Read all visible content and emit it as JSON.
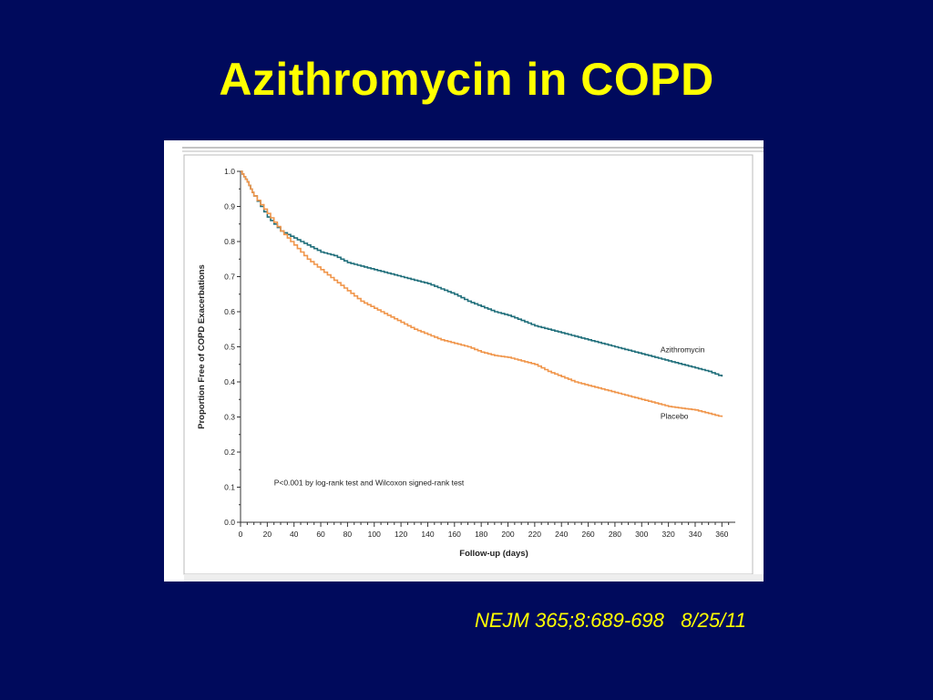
{
  "slide": {
    "title": "Azithromycin in COPD",
    "citation": "NEJM 365;8:689-698   8/25/11"
  },
  "colors": {
    "background": "#000a5c",
    "title": "#ffff00",
    "azithromycin": "#1f6e7a",
    "placebo": "#f0954a"
  },
  "chart_data": {
    "type": "line",
    "title": "",
    "xlabel": "Follow-up (days)",
    "ylabel": "Proportion Free of COPD Exacerbations",
    "xlim": [
      0,
      370
    ],
    "ylim": [
      0,
      1.0
    ],
    "x_ticks": [
      0,
      20,
      40,
      60,
      80,
      100,
      120,
      140,
      160,
      180,
      200,
      220,
      240,
      260,
      280,
      300,
      320,
      340,
      360
    ],
    "y_ticks": [
      "0.0",
      "0.1",
      "0.2",
      "0.3",
      "0.4",
      "0.5",
      "0.6",
      "0.7",
      "0.8",
      "0.9",
      "1.0"
    ],
    "annotation": "P<0.001 by log-rank test and Wilcoxon signed-rank test",
    "grid": false,
    "series": [
      {
        "name": "Azithromycin",
        "x": [
          0,
          5,
          10,
          20,
          30,
          40,
          50,
          60,
          70,
          80,
          90,
          100,
          110,
          120,
          130,
          140,
          150,
          160,
          170,
          180,
          190,
          200,
          210,
          220,
          230,
          240,
          250,
          260,
          270,
          280,
          290,
          300,
          310,
          320,
          330,
          340,
          350,
          360
        ],
        "y": [
          1.0,
          0.97,
          0.93,
          0.87,
          0.83,
          0.81,
          0.79,
          0.77,
          0.76,
          0.74,
          0.73,
          0.72,
          0.71,
          0.7,
          0.69,
          0.68,
          0.665,
          0.65,
          0.63,
          0.615,
          0.6,
          0.59,
          0.575,
          0.56,
          0.55,
          0.54,
          0.53,
          0.52,
          0.51,
          0.5,
          0.49,
          0.48,
          0.47,
          0.46,
          0.45,
          0.44,
          0.43,
          0.415
        ]
      },
      {
        "name": "Placebo",
        "x": [
          0,
          5,
          10,
          20,
          30,
          40,
          50,
          60,
          70,
          80,
          90,
          100,
          110,
          120,
          130,
          140,
          150,
          160,
          170,
          180,
          190,
          200,
          210,
          220,
          230,
          240,
          250,
          260,
          270,
          280,
          290,
          300,
          310,
          320,
          330,
          340,
          350,
          360
        ],
        "y": [
          1.0,
          0.97,
          0.93,
          0.88,
          0.83,
          0.79,
          0.75,
          0.72,
          0.69,
          0.66,
          0.63,
          0.61,
          0.59,
          0.57,
          0.55,
          0.535,
          0.52,
          0.51,
          0.5,
          0.485,
          0.475,
          0.47,
          0.46,
          0.45,
          0.43,
          0.415,
          0.4,
          0.39,
          0.38,
          0.37,
          0.36,
          0.35,
          0.34,
          0.33,
          0.325,
          0.32,
          0.31,
          0.3
        ]
      }
    ]
  }
}
